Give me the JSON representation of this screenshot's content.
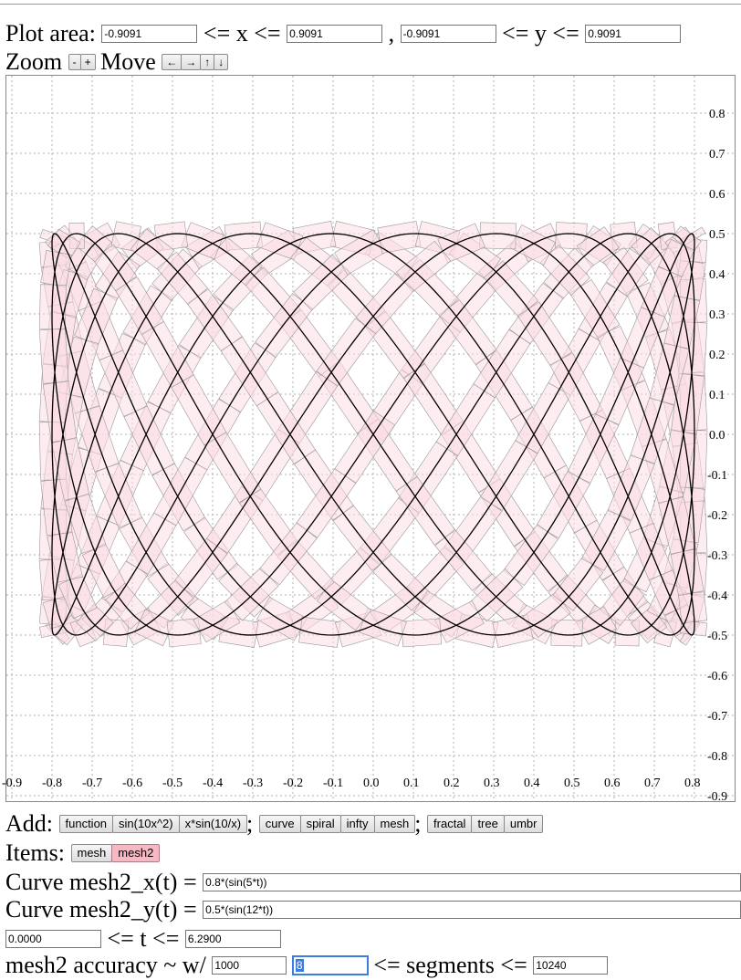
{
  "plot_area": {
    "label": "Plot area:",
    "xmin": "-0.9091",
    "xmax": "0.9091",
    "ymin": "-0.9091",
    "ymax": "0.9091",
    "le_x": "<= x <=",
    "comma": ",",
    "le_y": "<= y <="
  },
  "zoom": {
    "label": "Zoom",
    "minus": "-",
    "plus": "+",
    "move_label": "Move",
    "left": "←",
    "right": "→",
    "up": "↑",
    "down": "↓"
  },
  "add": {
    "label": "Add:",
    "group1": [
      "function",
      "sin(10x^2)",
      "x*sin(10/x)"
    ],
    "sep1": ";",
    "group2": [
      "curve",
      "spiral",
      "infty",
      "mesh"
    ],
    "sep2": ";",
    "group3": [
      "fractal",
      "tree",
      "umbr"
    ]
  },
  "items": {
    "label": "Items:",
    "list": [
      {
        "label": "mesh",
        "active": false
      },
      {
        "label": "mesh2",
        "active": true
      }
    ]
  },
  "curve": {
    "x_label": "Curve mesh2_x(t) =",
    "x_expr": "0.8*(sin(5*t))",
    "y_label": "Curve mesh2_y(t) =",
    "y_expr": "0.5*(sin(12*t))",
    "tmin": "0.0000",
    "t_label": "<= t <=",
    "tmax": "6.2900"
  },
  "accuracy": {
    "label": "mesh2 accuracy ~ w/",
    "w_value": "1000",
    "min_segments": "8",
    "segments_label": "<= segments <=",
    "max_segments": "10240"
  },
  "chart_data": {
    "type": "line",
    "title": "",
    "xlabel": "",
    "ylabel": "",
    "xlim": [
      -0.9091,
      0.9091
    ],
    "ylim": [
      -0.9091,
      0.9091
    ],
    "grid": true,
    "x_ticks": [
      "-0.9",
      "-0.8",
      "-0.7",
      "-0.6",
      "-0.5",
      "-0.4",
      "-0.3",
      "-0.2",
      "-0.1",
      "0.0",
      "0.1",
      "0.2",
      "0.3",
      "0.4",
      "0.5",
      "0.6",
      "0.7",
      "0.8"
    ],
    "y_ticks": [
      "0.8",
      "0.7",
      "0.6",
      "0.5",
      "0.4",
      "0.3",
      "0.2",
      "0.1",
      "0.0",
      "-0.1",
      "-0.2",
      "-0.3",
      "-0.4",
      "-0.5",
      "-0.6",
      "-0.7",
      "-0.8",
      "-0.9"
    ],
    "series": [
      {
        "x_expr": "0.8*(sin(5*t))",
        "y_expr": "0.5*(sin(12*t))",
        "t_range": [
          0,
          6.29
        ],
        "color": "#000000"
      },
      {
        "x_expr": "0.8*(sin(5*t))",
        "y_expr": "0.5*(sin(12*t))",
        "t_range": [
          0,
          6.29
        ],
        "color": "#f7c6cf",
        "style": "mesh-band"
      }
    ],
    "colors": {
      "mesh_fill": "#fcdde3",
      "mesh_stroke": "#999999",
      "curve": "#000000",
      "grid": "#b0b0b0"
    }
  }
}
